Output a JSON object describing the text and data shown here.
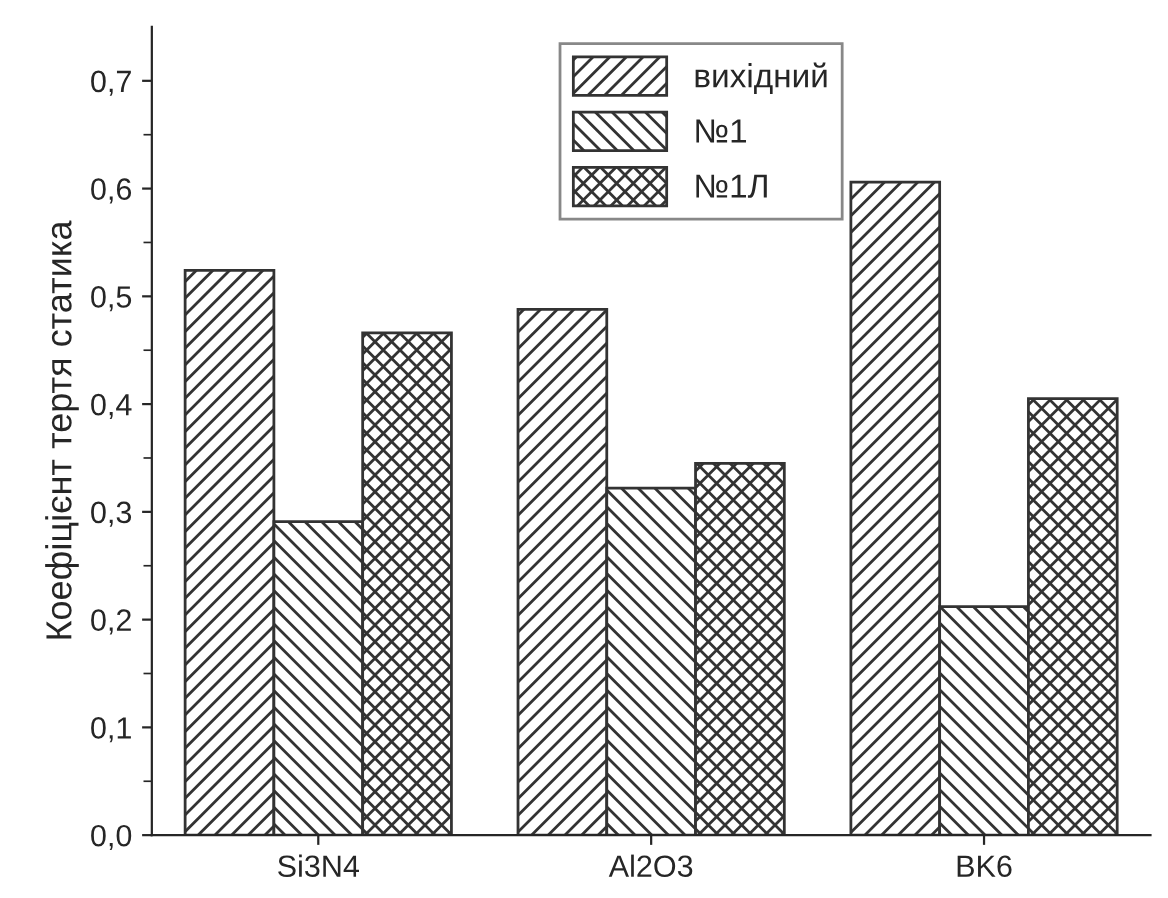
{
  "chart_data": {
    "type": "bar",
    "ylabel": "Коефіцієнт тертя статика",
    "categories": [
      "Si3N4",
      "Al2O3",
      "BK6"
    ],
    "series": [
      {
        "name": "вихідний",
        "color": "#333333",
        "values": [
          0.524,
          0.488,
          0.606
        ]
      },
      {
        "name": "№1",
        "color": "#333333",
        "values": [
          0.291,
          0.322,
          0.212
        ]
      },
      {
        "name": "№1Л",
        "color": "#333333",
        "values": [
          0.466,
          0.345,
          0.405
        ]
      }
    ],
    "ylim": [
      0,
      0.75
    ],
    "yticks": [
      {
        "value": 0,
        "label": "0,0"
      },
      {
        "value": 0.1,
        "label": "0,1"
      },
      {
        "value": 0.2,
        "label": "0,2"
      },
      {
        "value": 0.3,
        "label": "0,3"
      },
      {
        "value": 0.4,
        "label": "0,4"
      },
      {
        "value": 0.5,
        "label": "0,5"
      },
      {
        "value": 0.6,
        "label": "0,6"
      },
      {
        "value": 0.7,
        "label": "0,7"
      }
    ],
    "grid": false,
    "legend": "top"
  }
}
